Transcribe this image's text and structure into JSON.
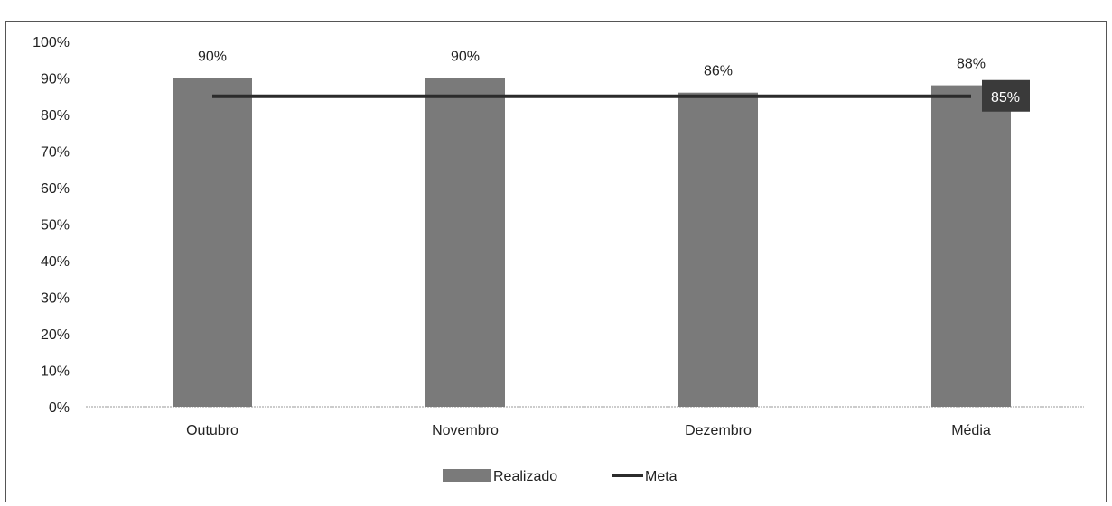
{
  "chart_data": {
    "type": "bar",
    "categories": [
      "Outubro",
      "Novembro",
      "Dezembro",
      "Média"
    ],
    "series": [
      {
        "name": "Realizado",
        "type": "bar",
        "values": [
          0.9,
          0.9,
          0.86,
          0.88
        ],
        "labels": [
          "90%",
          "90%",
          "86%",
          "88%"
        ],
        "color": "#7a7a7a"
      },
      {
        "name": "Meta",
        "type": "line",
        "values": [
          0.85,
          0.85,
          0.85,
          0.85
        ],
        "end_label": "85%",
        "color": "#2b2b2b"
      }
    ],
    "y_ticks": [
      "0%",
      "10%",
      "20%",
      "30%",
      "40%",
      "50%",
      "60%",
      "70%",
      "80%",
      "90%",
      "100%"
    ],
    "ylim": [
      0,
      1
    ],
    "legend_position": "bottom",
    "grid": false
  }
}
